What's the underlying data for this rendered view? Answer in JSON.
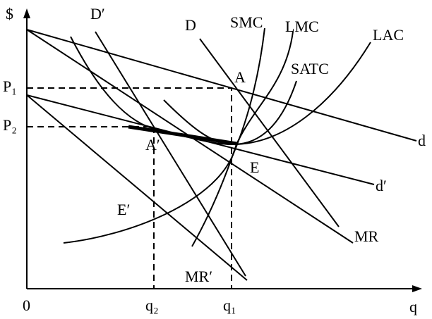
{
  "axes": {
    "y_label": "$",
    "x_label": "q",
    "origin": "0",
    "p1": "P₁",
    "p2": "P₂",
    "q1": "q₁",
    "q2": "q₂"
  },
  "curves": {
    "d": "d",
    "d_prime": "d′",
    "mr": "MR",
    "mr_prime": "MR′",
    "D": "D",
    "D_prime": "D′",
    "smc": "SMC",
    "lmc": "LMC",
    "lac": "LAC",
    "satc": "SATC"
  },
  "points": {
    "a": "A",
    "a_prime": "A′",
    "e": "E",
    "e_prime": "E′"
  }
}
